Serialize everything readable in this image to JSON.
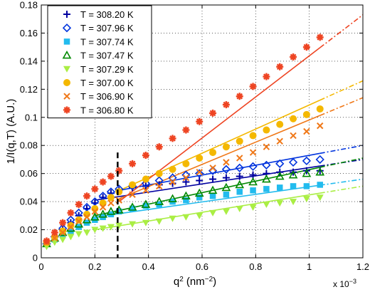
{
  "chart_data": {
    "type": "scatter",
    "xlabel": "q",
    "xlabel_sup": "2",
    "xlabel_unit": " (nm",
    "xlabel_unit_sup": "−2",
    "xlabel_close": ")",
    "ylabel": "1/I(q,T) (A.U.)",
    "x_exponent_label": "x 10",
    "x_exponent_power": "−3",
    "xlim": [
      0,
      0.0012
    ],
    "ylim": [
      0,
      0.18
    ],
    "xticks": [
      0,
      0.0002,
      0.0004,
      0.0006,
      0.0008,
      0.001,
      0.0012
    ],
    "xtick_labels": [
      "0",
      "0.2",
      "0.4",
      "0.6",
      "0.8",
      "1",
      "1.2"
    ],
    "yticks": [
      0,
      0.02,
      0.04,
      0.06,
      0.08,
      0.1,
      0.12,
      0.14,
      0.16,
      0.18
    ],
    "ytick_labels": [
      "0",
      "0.02",
      "0.04",
      "0.06",
      "0.08",
      "0.1",
      "0.12",
      "0.14",
      "0.16",
      "0.18"
    ],
    "grid": true,
    "legend_position": "top-left",
    "vertical_marker_x": 0.000285,
    "series": [
      {
        "name": "T = 308.20 K",
        "color": "#0000a0",
        "marker": "plus",
        "x": [
          2e-05,
          5e-05,
          8e-05,
          0.00011,
          0.00014,
          0.00017,
          0.0002,
          0.00023,
          0.00026,
          0.00029,
          0.00034,
          0.00039,
          0.00044,
          0.00049,
          0.00054,
          0.00059,
          0.00064,
          0.00069,
          0.00074,
          0.00079,
          0.00084,
          0.00089,
          0.00094,
          0.00099,
          0.00104
        ],
        "y": [
          0.01,
          0.015,
          0.02,
          0.025,
          0.03,
          0.035,
          0.039,
          0.043,
          0.046,
          0.048,
          0.05,
          0.051,
          0.052,
          0.053,
          0.054,
          0.055,
          0.056,
          0.057,
          0.058,
          0.059,
          0.06,
          0.061,
          0.061,
          0.062,
          0.062
        ]
      },
      {
        "name": "T = 307.96 K",
        "color": "#0033dd",
        "marker": "diamond",
        "x": [
          2e-05,
          5e-05,
          8e-05,
          0.00011,
          0.00014,
          0.00017,
          0.0002,
          0.00023,
          0.00026,
          0.00029,
          0.00034,
          0.00039,
          0.00044,
          0.00049,
          0.00054,
          0.00059,
          0.00064,
          0.00069,
          0.00074,
          0.00079,
          0.00084,
          0.00089,
          0.00094,
          0.00099,
          0.00104
        ],
        "y": [
          0.01,
          0.015,
          0.021,
          0.027,
          0.032,
          0.036,
          0.04,
          0.044,
          0.047,
          0.049,
          0.051,
          0.053,
          0.055,
          0.057,
          0.059,
          0.06,
          0.062,
          0.063,
          0.064,
          0.065,
          0.066,
          0.067,
          0.068,
          0.069,
          0.07
        ]
      },
      {
        "name": "T = 307.74 K",
        "color": "#22bbee",
        "marker": "square",
        "x": [
          2e-05,
          5e-05,
          8e-05,
          0.00011,
          0.00014,
          0.00017,
          0.0002,
          0.00023,
          0.00026,
          0.00029,
          0.00034,
          0.00039,
          0.00044,
          0.00049,
          0.00054,
          0.00059,
          0.00064,
          0.00069,
          0.00074,
          0.00079,
          0.00084,
          0.00089,
          0.00094,
          0.00099,
          0.00104
        ],
        "y": [
          0.01,
          0.013,
          0.016,
          0.019,
          0.022,
          0.025,
          0.027,
          0.029,
          0.031,
          0.033,
          0.035,
          0.037,
          0.038,
          0.04,
          0.041,
          0.043,
          0.044,
          0.045,
          0.047,
          0.048,
          0.049,
          0.05,
          0.051,
          0.051,
          0.052
        ]
      },
      {
        "name": "T = 307.47 K",
        "color": "#008800",
        "marker": "triangle",
        "x": [
          2e-05,
          5e-05,
          8e-05,
          0.00011,
          0.00014,
          0.00017,
          0.0002,
          0.00023,
          0.00026,
          0.00029,
          0.00034,
          0.00039,
          0.00044,
          0.00049,
          0.00054,
          0.00059,
          0.00064,
          0.00069,
          0.00074,
          0.00079,
          0.00084,
          0.00089,
          0.00094,
          0.00099,
          0.00104
        ],
        "y": [
          0.01,
          0.014,
          0.018,
          0.021,
          0.024,
          0.027,
          0.029,
          0.031,
          0.033,
          0.034,
          0.036,
          0.038,
          0.04,
          0.042,
          0.044,
          0.046,
          0.048,
          0.05,
          0.052,
          0.054,
          0.056,
          0.058,
          0.059,
          0.06,
          0.061
        ]
      },
      {
        "name": "T = 307.29 K",
        "color": "#aaee44",
        "marker": "triangle-down",
        "x": [
          2e-05,
          5e-05,
          8e-05,
          0.00011,
          0.00014,
          0.00017,
          0.0002,
          0.00023,
          0.00026,
          0.00029,
          0.00034,
          0.00039,
          0.00044,
          0.00049,
          0.00054,
          0.00059,
          0.00064,
          0.00069,
          0.00074,
          0.00079,
          0.00084,
          0.00089,
          0.00094,
          0.00099,
          0.00104
        ],
        "y": [
          0.008,
          0.011,
          0.013,
          0.015,
          0.017,
          0.018,
          0.02,
          0.021,
          0.022,
          0.023,
          0.024,
          0.025,
          0.026,
          0.028,
          0.029,
          0.03,
          0.032,
          0.033,
          0.035,
          0.036,
          0.038,
          0.039,
          0.04,
          0.042,
          0.043
        ]
      },
      {
        "name": "T = 307.00 K",
        "color": "#f4b800",
        "marker": "circle",
        "x": [
          2e-05,
          5e-05,
          8e-05,
          0.00011,
          0.00014,
          0.00017,
          0.0002,
          0.00023,
          0.00026,
          0.00029,
          0.00034,
          0.00039,
          0.00044,
          0.00049,
          0.00054,
          0.00059,
          0.00064,
          0.00069,
          0.00074,
          0.00079,
          0.00084,
          0.00089,
          0.00094,
          0.00099,
          0.00104
        ],
        "y": [
          0.011,
          0.015,
          0.019,
          0.023,
          0.027,
          0.031,
          0.035,
          0.039,
          0.043,
          0.047,
          0.052,
          0.056,
          0.06,
          0.063,
          0.067,
          0.071,
          0.075,
          0.079,
          0.083,
          0.087,
          0.091,
          0.095,
          0.099,
          0.102,
          0.106
        ]
      },
      {
        "name": "T = 306.90 K",
        "color": "#f07818",
        "marker": "cross",
        "x": [
          2e-05,
          5e-05,
          8e-05,
          0.00011,
          0.00014,
          0.00017,
          0.0002,
          0.00023,
          0.00026,
          0.00029,
          0.00034,
          0.00039,
          0.00044,
          0.00049,
          0.00054,
          0.00059,
          0.00064,
          0.00069,
          0.00074,
          0.00079,
          0.00084,
          0.00089,
          0.00094,
          0.00099,
          0.00104
        ],
        "y": [
          0.011,
          0.014,
          0.018,
          0.022,
          0.026,
          0.029,
          0.033,
          0.036,
          0.039,
          0.041,
          0.045,
          0.048,
          0.051,
          0.054,
          0.057,
          0.061,
          0.064,
          0.068,
          0.071,
          0.075,
          0.079,
          0.083,
          0.087,
          0.09,
          0.094
        ]
      },
      {
        "name": "T = 306.80 K",
        "color": "#ee4422",
        "marker": "star",
        "x": [
          2e-05,
          5e-05,
          8e-05,
          0.00011,
          0.00014,
          0.00017,
          0.0002,
          0.00023,
          0.00026,
          0.00029,
          0.00034,
          0.00039,
          0.00044,
          0.00049,
          0.00054,
          0.00059,
          0.00064,
          0.00069,
          0.00074,
          0.00079,
          0.00084,
          0.00089,
          0.00094,
          0.00099,
          0.00104
        ],
        "y": [
          0.012,
          0.018,
          0.025,
          0.032,
          0.038,
          0.044,
          0.049,
          0.054,
          0.058,
          0.062,
          0.067,
          0.073,
          0.079,
          0.085,
          0.091,
          0.097,
          0.103,
          0.109,
          0.115,
          0.122,
          0.129,
          0.136,
          0.143,
          0.15,
          0.157
        ]
      }
    ],
    "fits": [
      {
        "series": "T = 308.20 K",
        "color": "#0000a0",
        "x": [
          0.0002,
          0.0012
        ],
        "y": [
          0.041,
          0.07
        ],
        "dash_from": 0.00104
      },
      {
        "series": "T = 307.96 K",
        "color": "#0033dd",
        "x": [
          0.00029,
          0.0012
        ],
        "y": [
          0.048,
          0.08
        ],
        "dash_from": 0.00104
      },
      {
        "series": "T = 307.74 K",
        "color": "#22bbee",
        "x": [
          0.0002,
          0.0012
        ],
        "y": [
          0.029,
          0.056
        ],
        "dash_from": 0.00104
      },
      {
        "series": "T = 307.47 K",
        "color": "#008800",
        "x": [
          0.0002,
          0.0012
        ],
        "y": [
          0.03,
          0.071
        ],
        "dash_from": 0.00104
      },
      {
        "series": "T = 307.29 K",
        "color": "#aaee44",
        "x": [
          0.0002,
          0.0012
        ],
        "y": [
          0.02,
          0.051
        ],
        "dash_from": 0.00104
      },
      {
        "series": "T = 307.00 K",
        "color": "#f4b800",
        "x": [
          0.00028,
          0.0012
        ],
        "y": [
          0.047,
          0.126
        ],
        "dash_from": 0.00104
      },
      {
        "series": "T = 306.90 K",
        "color": "#f07818",
        "x": [
          0.00029,
          0.0012
        ],
        "y": [
          0.042,
          0.114
        ],
        "dash_from": 0.00104
      },
      {
        "series": "T = 306.80 K",
        "color": "#ee4422",
        "x": [
          0.00029,
          0.0012
        ],
        "y": [
          0.04,
          0.173
        ],
        "dash_from": 0.00104
      }
    ]
  }
}
